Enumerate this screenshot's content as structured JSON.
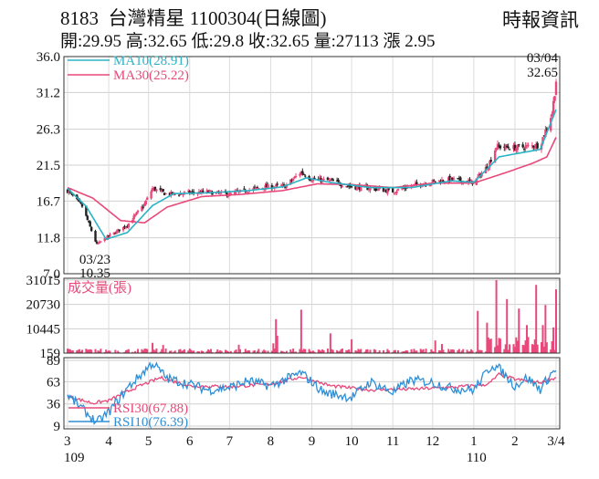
{
  "header": {
    "stock_code": "8183",
    "stock_name": "台灣精星",
    "date_label": "1100304(日線圖)",
    "ohlc_text": "開:29.95 高:32.65 低:29.8 收:32.65 量:27113 漲 2.95",
    "source": "時報資訊"
  },
  "colors": {
    "ma10": "#2bb3c4",
    "ma30": "#e8487a",
    "volume": "#e8487a",
    "rsi30": "#e8487a",
    "rsi10": "#2f8fd6",
    "up": "#e8487a",
    "down": "#222222"
  },
  "chart_data": [
    {
      "type": "candlestick",
      "panel": "price",
      "yticks": [
        36.0,
        31.2,
        26.3,
        21.5,
        16.7,
        11.8,
        7.0
      ],
      "ytick_labels": [
        "36.0",
        "31.2",
        "26.3",
        "21.5",
        "16.7",
        "11.8",
        "7.0"
      ],
      "ylim": [
        7.0,
        36.0
      ],
      "grid": true,
      "legend": [
        {
          "label": "MA10(28.91)",
          "color": "#2bb3c4"
        },
        {
          "label": "MA30(25.22)",
          "color": "#e8487a"
        }
      ],
      "annotations": [
        {
          "label": "03/04",
          "value": "32.65",
          "x": "3/4",
          "y": 32.65
        },
        {
          "label": "03/23",
          "value": "10.35",
          "x": "3/23",
          "y": 10.35
        }
      ],
      "close_anchors": [
        [
          "3/1",
          18.1
        ],
        [
          "3/12",
          16.0
        ],
        [
          "3/23",
          10.9
        ],
        [
          "4/1",
          12.0
        ],
        [
          "4/15",
          13.5
        ],
        [
          "4/28",
          16.3
        ],
        [
          "5/4",
          18.4
        ],
        [
          "5/15",
          17.6
        ],
        [
          "6/1",
          17.8
        ],
        [
          "6/15",
          17.9
        ],
        [
          "7/1",
          17.6
        ],
        [
          "7/15",
          18.2
        ],
        [
          "7/28",
          18.6
        ],
        [
          "8/12",
          18.7
        ],
        [
          "8/24",
          20.6
        ],
        [
          "9/1",
          19.6
        ],
        [
          "9/15",
          19.4
        ],
        [
          "10/1",
          18.6
        ],
        [
          "10/15",
          18.4
        ],
        [
          "11/1",
          18.0
        ],
        [
          "11/15",
          18.7
        ],
        [
          "12/1",
          19.3
        ],
        [
          "12/15",
          19.6
        ],
        [
          "1/1",
          19.2
        ],
        [
          "1/12",
          21.5
        ],
        [
          "1/18",
          24.0
        ],
        [
          "2/1",
          23.8
        ],
        [
          "2/20",
          24.2
        ],
        [
          "3/1",
          28.5
        ],
        [
          "3/4",
          32.65
        ]
      ],
      "ma10_anchors": [
        [
          "3/1",
          18.4
        ],
        [
          "3/15",
          16.0
        ],
        [
          "3/30",
          11.6
        ],
        [
          "4/15",
          12.5
        ],
        [
          "5/4",
          16.1
        ],
        [
          "5/20",
          17.7
        ],
        [
          "6/15",
          17.8
        ],
        [
          "7/15",
          18.1
        ],
        [
          "8/10",
          18.6
        ],
        [
          "8/28",
          19.8
        ],
        [
          "9/15",
          19.2
        ],
        [
          "10/15",
          18.5
        ],
        [
          "11/15",
          18.5
        ],
        [
          "12/15",
          19.4
        ],
        [
          "1/1",
          19.2
        ],
        [
          "1/20",
          22.6
        ],
        [
          "2/1",
          23.0
        ],
        [
          "2/20",
          23.6
        ],
        [
          "3/4",
          28.91
        ]
      ],
      "ma30_anchors": [
        [
          "3/1",
          18.5
        ],
        [
          "3/20",
          17.1
        ],
        [
          "4/10",
          14.1
        ],
        [
          "4/28",
          13.8
        ],
        [
          "5/15",
          15.9
        ],
        [
          "6/10",
          17.3
        ],
        [
          "7/10",
          17.6
        ],
        [
          "8/10",
          18.1
        ],
        [
          "9/5",
          19.0
        ],
        [
          "10/1",
          18.9
        ],
        [
          "11/1",
          18.5
        ],
        [
          "12/1",
          19.1
        ],
        [
          "1/1",
          19.1
        ],
        [
          "1/25",
          20.5
        ],
        [
          "2/15",
          21.8
        ],
        [
          "2/25",
          22.6
        ],
        [
          "3/4",
          25.22
        ]
      ]
    },
    {
      "type": "bar",
      "panel": "volume",
      "label": "成交量(張)",
      "yticks": [
        31015,
        20730,
        10445,
        159
      ],
      "ytick_labels": [
        "31015",
        "20730",
        "10445",
        "159"
      ],
      "ylim": [
        159,
        31015
      ],
      "spikes": [
        [
          "5/4",
          4500
        ],
        [
          "5/12",
          3600
        ],
        [
          "7/8",
          3700
        ],
        [
          "8/3",
          4300
        ],
        [
          "8/5",
          14500
        ],
        [
          "8/6",
          7500
        ],
        [
          "8/24",
          18500
        ],
        [
          "9/15",
          8500
        ],
        [
          "10/1",
          6000
        ],
        [
          "12/3",
          5500
        ],
        [
          "12/8",
          4000
        ],
        [
          "1/4",
          18000
        ],
        [
          "1/11",
          13000
        ],
        [
          "1/18",
          31015
        ],
        [
          "1/22",
          19000
        ],
        [
          "1/26",
          23000
        ],
        [
          "2/4",
          19000
        ],
        [
          "2/10",
          12000
        ],
        [
          "2/17",
          29000
        ],
        [
          "2/20",
          27000
        ],
        [
          "2/22",
          12000
        ],
        [
          "2/24",
          20500
        ],
        [
          "2/26",
          15000
        ],
        [
          "3/2",
          11000
        ],
        [
          "3/4",
          27113
        ]
      ]
    },
    {
      "type": "line",
      "panel": "rsi",
      "yticks": [
        89,
        63,
        36,
        9
      ],
      "ytick_labels": [
        "89",
        "63",
        "36",
        "9"
      ],
      "ylim": [
        9,
        89
      ],
      "series": [
        {
          "name": "RSI30(67.88)",
          "color": "#e8487a",
          "anchors": [
            [
              "3/1",
              45
            ],
            [
              "3/20",
              37
            ],
            [
              "4/1",
              40
            ],
            [
              "4/20",
              55
            ],
            [
              "5/10",
              68
            ],
            [
              "6/1",
              58
            ],
            [
              "7/1",
              57
            ],
            [
              "8/1",
              60
            ],
            [
              "8/24",
              69
            ],
            [
              "9/15",
              58
            ],
            [
              "10/15",
              53
            ],
            [
              "11/15",
              54
            ],
            [
              "12/15",
              56
            ],
            [
              "1/12",
              60
            ],
            [
              "1/20",
              72
            ],
            [
              "2/1",
              66
            ],
            [
              "2/20",
              62
            ],
            [
              "3/4",
              67.88
            ]
          ]
        },
        {
          "name": "RSI10(76.39)",
          "color": "#2f8fd6",
          "anchors": [
            [
              "3/1",
              47
            ],
            [
              "3/12",
              30
            ],
            [
              "3/23",
              13
            ],
            [
              "4/1",
              26
            ],
            [
              "4/15",
              55
            ],
            [
              "5/4",
              86
            ],
            [
              "5/15",
              67
            ],
            [
              "6/1",
              60
            ],
            [
              "6/15",
              53
            ],
            [
              "7/1",
              56
            ],
            [
              "7/15",
              64
            ],
            [
              "8/1",
              58
            ],
            [
              "8/24",
              74
            ],
            [
              "9/10",
              50
            ],
            [
              "10/1",
              44
            ],
            [
              "10/15",
              63
            ],
            [
              "11/1",
              50
            ],
            [
              "11/15",
              65
            ],
            [
              "12/1",
              62
            ],
            [
              "12/15",
              55
            ],
            [
              "1/1",
              53
            ],
            [
              "1/15",
              84
            ],
            [
              "1/20",
              79
            ],
            [
              "2/1",
              58
            ],
            [
              "2/10",
              68
            ],
            [
              "2/20",
              54
            ],
            [
              "3/1",
              74
            ],
            [
              "3/4",
              76.39
            ]
          ]
        }
      ]
    }
  ],
  "x_axis": {
    "month_labels": [
      "3",
      "4",
      "5",
      "6",
      "7",
      "8",
      "9",
      "10",
      "11",
      "12",
      "1",
      "2",
      "3/4"
    ],
    "year_labels": [
      {
        "label": "109",
        "at": "3"
      },
      {
        "label": "110",
        "at": "1"
      }
    ]
  }
}
